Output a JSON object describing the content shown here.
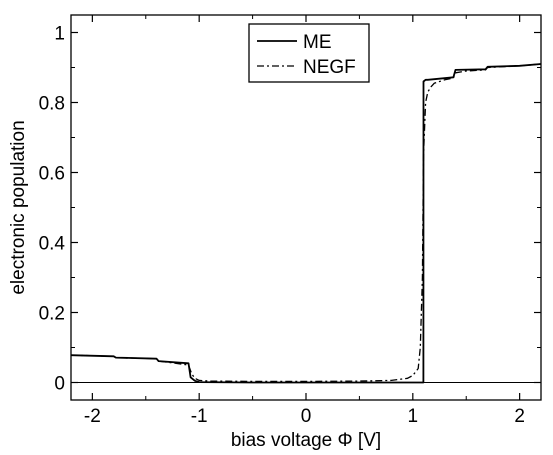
{
  "chart_data": {
    "type": "line",
    "title": "",
    "xlabel": "bias voltage Φ [V]",
    "ylabel": "electronic population",
    "xlim": [
      -2.2,
      2.2
    ],
    "ylim": [
      -0.05,
      1.05
    ],
    "x_ticks": [
      -2,
      -1,
      0,
      1,
      2
    ],
    "x_tick_labels": [
      "-2",
      "-1",
      "0",
      "1",
      "2"
    ],
    "y_ticks": [
      0,
      0.2,
      0.4,
      0.6,
      0.8,
      1
    ],
    "y_tick_labels": [
      "0",
      "0.2",
      "0.4",
      "0.6",
      "0.8",
      "1"
    ],
    "grid": false,
    "reference_line_y": 0,
    "legend_position": "top-center",
    "series": [
      {
        "name": "ME",
        "style": "solid",
        "color": "#000000",
        "x": [
          -2.2,
          -1.8,
          -1.78,
          -1.4,
          -1.38,
          -1.1,
          -1.08,
          -1.04,
          -1.0,
          -0.5,
          0.0,
          0.5,
          1.0,
          1.099,
          1.1,
          1.12,
          1.14,
          1.38,
          1.4,
          1.68,
          1.7,
          2.0,
          2.2
        ],
        "y": [
          0.078,
          0.075,
          0.071,
          0.068,
          0.061,
          0.055,
          0.015,
          0.005,
          0.001,
          0.0,
          0.0,
          0.0,
          0.0,
          0.0,
          0.86,
          0.865,
          0.865,
          0.872,
          0.893,
          0.895,
          0.902,
          0.905,
          0.91
        ]
      },
      {
        "name": "NEGF",
        "style": "dash-dot",
        "color": "#000000",
        "x": [
          -2.2,
          -1.8,
          -1.78,
          -1.4,
          -1.38,
          -1.1,
          -1.07,
          -1.04,
          -1.0,
          -0.9,
          -0.5,
          0.0,
          0.5,
          0.8,
          0.95,
          1.0,
          1.05,
          1.07,
          1.09,
          1.1,
          1.12,
          1.14,
          1.17,
          1.2,
          1.25,
          1.3,
          1.38,
          1.4,
          1.5,
          1.68,
          1.7,
          2.0,
          2.2
        ],
        "y": [
          0.078,
          0.075,
          0.071,
          0.068,
          0.061,
          0.05,
          0.025,
          0.012,
          0.006,
          0.004,
          0.003,
          0.003,
          0.004,
          0.006,
          0.012,
          0.02,
          0.04,
          0.1,
          0.3,
          0.65,
          0.8,
          0.83,
          0.845,
          0.855,
          0.86,
          0.865,
          0.87,
          0.885,
          0.89,
          0.893,
          0.9,
          0.905,
          0.91
        ]
      }
    ]
  }
}
